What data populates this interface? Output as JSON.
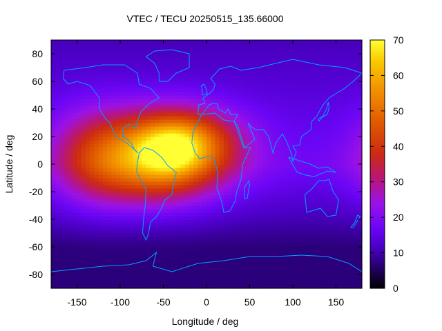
{
  "chart_data": {
    "type": "heatmap",
    "title": "VTEC / TECU 20250515_135.66000",
    "xlabel": "Longitude / deg",
    "ylabel": "Latitude / deg",
    "xlim": [
      -180,
      180
    ],
    "ylim": [
      -90,
      90
    ],
    "x_ticks": [
      -150,
      -100,
      -50,
      0,
      50,
      100,
      150
    ],
    "y_ticks": [
      -80,
      -60,
      -40,
      -20,
      0,
      20,
      40,
      60,
      80
    ],
    "colorbar": {
      "range": [
        0,
        70
      ],
      "ticks": [
        0,
        10,
        20,
        30,
        40,
        50,
        60,
        70
      ],
      "stops": [
        {
          "v": 0,
          "c": "#000000"
        },
        {
          "v": 6,
          "c": "#24006a"
        },
        {
          "v": 12,
          "c": "#4d00c8"
        },
        {
          "v": 17,
          "c": "#6a05f5"
        },
        {
          "v": 24,
          "c": "#9a12e8"
        },
        {
          "v": 31,
          "c": "#b8167a"
        },
        {
          "v": 38,
          "c": "#cc2a12"
        },
        {
          "v": 47,
          "c": "#e05a00"
        },
        {
          "v": 56,
          "c": "#f29000"
        },
        {
          "v": 64,
          "c": "#f9c800"
        },
        {
          "v": 70,
          "c": "#ffff33"
        }
      ]
    },
    "field_model": {
      "background_low_lat_tecu": 18,
      "background_high_lat_tecu": 11,
      "background_south_tecu": 7,
      "blobs": [
        {
          "lon": -60,
          "lat": 5,
          "sigma_lon": 55,
          "sigma_lat": 22,
          "tecu": 40
        },
        {
          "lon": -40,
          "lat": 12,
          "sigma_lon": 28,
          "sigma_lat": 14,
          "tecu": 18
        },
        {
          "lon": -10,
          "lat": 18,
          "sigma_lon": 40,
          "sigma_lat": 16,
          "tecu": 14
        },
        {
          "lon": -130,
          "lat": 5,
          "sigma_lon": 35,
          "sigma_lat": 25,
          "tecu": 12
        }
      ]
    },
    "overlay": "coastlines",
    "coastline_color": "#00a0ff"
  }
}
